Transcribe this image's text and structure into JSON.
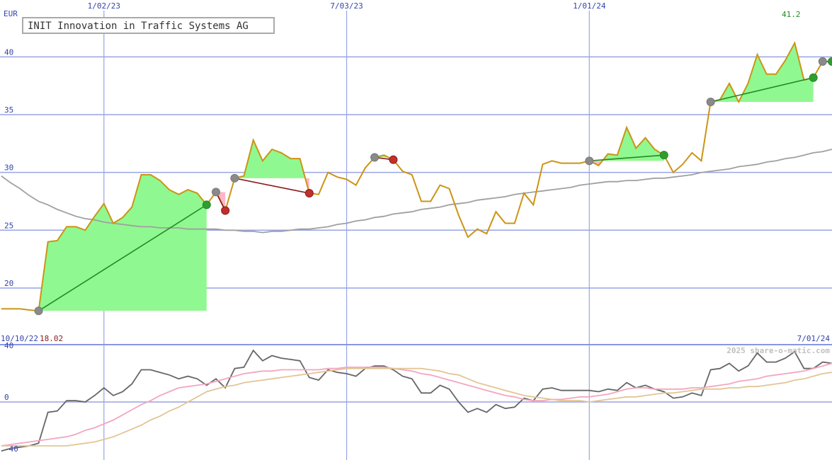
{
  "chart_data": [
    {
      "type": "line",
      "title": "INIT Innovation in Traffic Systems AG",
      "unit": "EUR",
      "categories": [
        "10/10/22",
        null,
        null,
        null,
        null,
        null,
        null,
        null,
        null,
        null,
        null,
        "1/02/23",
        null,
        null,
        null,
        null,
        null,
        null,
        null,
        null,
        null,
        null,
        null,
        null,
        null,
        null,
        null,
        null,
        null,
        null,
        null,
        null,
        null,
        null,
        null,
        null,
        null,
        "7/03/23",
        null,
        null,
        null,
        null,
        null,
        null,
        null,
        null,
        null,
        null,
        null,
        null,
        null,
        null,
        null,
        null,
        null,
        null,
        null,
        null,
        null,
        null,
        null,
        null,
        null,
        "1/01/24",
        null,
        null,
        null,
        null,
        null,
        null,
        null,
        null,
        null,
        null,
        null,
        null,
        null,
        null,
        null,
        null,
        null,
        null,
        null,
        null,
        null,
        null,
        null,
        null,
        null,
        "7/01/24"
      ],
      "ylim": [
        15.1,
        44
      ],
      "yticks": [
        20,
        25,
        30,
        35,
        40
      ],
      "grid": true,
      "series": [
        {
          "color": "#cc9414",
          "values": [
            18.2,
            18.2,
            18.2,
            18.1,
            18.02,
            24,
            24.1,
            25.3,
            25.3,
            25,
            26.2,
            27.3,
            25.6,
            26.1,
            27,
            29.8,
            29.8,
            29.3,
            28.5,
            28.1,
            28.5,
            28.2,
            27.2,
            28.3,
            26.7,
            29.5,
            29.7,
            32.8,
            31,
            32,
            31.7,
            31.2,
            31.2,
            28.2,
            28.1,
            30,
            29.6,
            29.4,
            28.9,
            30.4,
            31.3,
            31.5,
            31.1,
            30.1,
            29.8,
            27.5,
            27.5,
            28.9,
            28.6,
            26.3,
            24.4,
            25.1,
            24.7,
            26.6,
            25.6,
            25.6,
            28.2,
            27.2,
            30.7,
            31,
            30.8,
            30.8,
            30.8,
            31,
            30.6,
            31.6,
            31.5,
            33.9,
            32.1,
            33,
            32,
            31.5,
            30,
            30.7,
            31.7,
            31,
            36.1,
            36.3,
            37.7,
            36.1,
            37.7,
            40.2,
            38.5,
            38.5,
            39.7,
            41.2,
            38,
            38.2,
            39.6,
            39.6
          ]
        },
        {
          "color": "#a0a0a0",
          "values": [
            29.7,
            29.1,
            28.6,
            28,
            27.5,
            27.2,
            26.8,
            26.5,
            26.2,
            26,
            25.9,
            25.7,
            25.6,
            25.5,
            25.4,
            25.3,
            25.3,
            25.2,
            25.2,
            25.2,
            25.1,
            25.1,
            25.1,
            25.1,
            25,
            25,
            24.9,
            24.9,
            24.8,
            24.9,
            24.9,
            25,
            25.1,
            25.1,
            25.2,
            25.3,
            25.5,
            25.6,
            25.8,
            25.9,
            26.1,
            26.2,
            26.4,
            26.5,
            26.6,
            26.8,
            26.9,
            27,
            27.2,
            27.3,
            27.4,
            27.6,
            27.7,
            27.8,
            27.9,
            28.1,
            28.2,
            28.3,
            28.4,
            28.5,
            28.6,
            28.7,
            28.9,
            29,
            29.1,
            29.2,
            29.2,
            29.3,
            29.3,
            29.4,
            29.5,
            29.5,
            29.6,
            29.7,
            29.8,
            30,
            30.1,
            30.2,
            30.3,
            30.5,
            30.6,
            30.7,
            30.9,
            31,
            31.2,
            31.3,
            31.5,
            31.7,
            31.8,
            32
          ]
        }
      ],
      "trades": [
        {
          "entry": 4,
          "exit": 22
        },
        {
          "entry": 23,
          "exit": 24
        },
        {
          "entry": 25,
          "exit": 33
        },
        {
          "entry": 40,
          "exit": 42
        },
        {
          "entry": 63,
          "exit": 71
        },
        {
          "entry": 76,
          "exit": 87
        },
        {
          "entry": 88,
          "exit": 89
        }
      ],
      "profit_color": "#228b22",
      "loss_color": "#8b1a1a",
      "gain_fill": "#90f890",
      "drop_fill": "#ffb6c8",
      "entry_color": "#8a8a8a",
      "minmax_colors": [
        "#8b1a1a",
        "#228b22"
      ]
    },
    {
      "type": "line",
      "watermark": "2025 share-o-matic.com",
      "ylim": [
        -45,
        44.5
      ],
      "yticks": [
        -40,
        0,
        40
      ],
      "grid_lines": [
        0
      ],
      "series": [
        {
          "color": "#666666",
          "values": [
            -38,
            -36,
            -35,
            -34,
            -32,
            -8,
            -7,
            1,
            1,
            0,
            5,
            11,
            5,
            8,
            14,
            25,
            25,
            23,
            21,
            18,
            20,
            18,
            13,
            18,
            11,
            26,
            27,
            40,
            32,
            36,
            34,
            33,
            32,
            19,
            17,
            25,
            23,
            22,
            20,
            26,
            28,
            28,
            25,
            20,
            18,
            7,
            7,
            13,
            10,
            0,
            -8,
            -5,
            -8,
            -2,
            -5,
            -4,
            3,
            1,
            10,
            11,
            9,
            9,
            9,
            9,
            8,
            10,
            9,
            15,
            11,
            13,
            10,
            8,
            3,
            4,
            7,
            5,
            25,
            26,
            30,
            24,
            28,
            38,
            31,
            31,
            34,
            39,
            26,
            26,
            31,
            30
          ]
        },
        {
          "color": "#f4a6c0",
          "values": [
            -34,
            -33,
            -32,
            -31,
            -30,
            -29,
            -28,
            -27,
            -25,
            -22,
            -20,
            -17,
            -14,
            -10,
            -6,
            -2,
            1,
            5,
            8,
            11,
            12,
            13,
            14,
            16,
            18,
            20,
            22,
            23,
            24,
            24,
            25,
            25,
            25,
            25,
            25,
            26,
            26,
            27,
            27,
            27,
            27,
            27,
            26,
            25,
            24,
            22,
            21,
            19,
            17,
            15,
            13,
            11,
            9,
            7,
            5,
            4,
            2,
            1,
            1,
            2,
            2,
            3,
            4,
            4,
            5,
            6,
            8,
            10,
            11,
            11,
            10,
            10,
            10,
            10,
            11,
            11,
            12,
            13,
            14,
            16,
            17,
            18,
            20,
            21,
            22,
            23,
            24,
            26,
            28,
            30
          ]
        },
        {
          "color": "#e2c596",
          "values": [
            -34,
            -34,
            -34,
            -34,
            -34,
            -34,
            -34,
            -34,
            -33,
            -32,
            -31,
            -29,
            -27,
            -24,
            -21,
            -18,
            -14,
            -11,
            -7,
            -4,
            0,
            4,
            8,
            10,
            12,
            13,
            15,
            16,
            17,
            18,
            19,
            20,
            21,
            22,
            23,
            24,
            25,
            26,
            26,
            26,
            26,
            26,
            26,
            26,
            26,
            26,
            25,
            24,
            22,
            21,
            18,
            15,
            13,
            11,
            9,
            7,
            5,
            4,
            3,
            2,
            1,
            1,
            1,
            0,
            1,
            2,
            3,
            4,
            4,
            5,
            6,
            7,
            7,
            8,
            9,
            10,
            10,
            10,
            11,
            11,
            12,
            12,
            13,
            14,
            15,
            17,
            18,
            20,
            22,
            23
          ]
        }
      ]
    }
  ]
}
